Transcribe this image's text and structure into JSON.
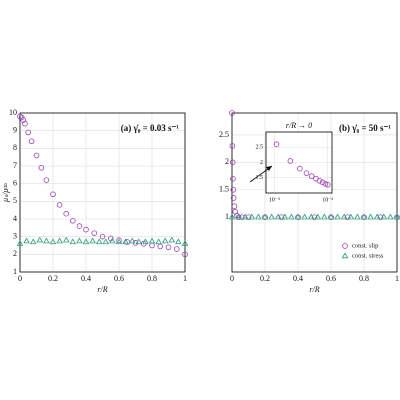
{
  "chart_data": [
    {
      "type": "scatter",
      "annotation": "(a) γ̇₀ = 0.03 s⁻¹",
      "x_label": "r/R",
      "y_label": "μₛ/μ∞",
      "xlim": [
        0,
        1
      ],
      "ylim": [
        1,
        10
      ],
      "xticks": [
        0,
        0.2,
        0.4,
        0.6,
        0.8,
        1
      ],
      "yticks": [
        1,
        2,
        3,
        4,
        5,
        6,
        7,
        8,
        9,
        10
      ],
      "grid": true,
      "series": [
        {
          "name": "const. slip",
          "color": "#9b3fb5",
          "marker": "circle",
          "x": [
            0,
            0.01,
            0.02,
            0.03,
            0.05,
            0.07,
            0.1,
            0.13,
            0.16,
            0.2,
            0.24,
            0.28,
            0.32,
            0.36,
            0.4,
            0.45,
            0.5,
            0.55,
            0.6,
            0.65,
            0.7,
            0.75,
            0.8,
            0.85,
            0.9,
            0.95,
            1
          ],
          "values": [
            9.8,
            9.75,
            9.6,
            9.4,
            8.9,
            8.4,
            7.6,
            6.9,
            6.2,
            5.4,
            4.8,
            4.3,
            3.9,
            3.6,
            3.4,
            3.2,
            3.0,
            2.9,
            2.8,
            2.7,
            2.65,
            2.6,
            2.5,
            2.45,
            2.4,
            2.3,
            2.0
          ]
        },
        {
          "name": "const. stress",
          "color": "#2a9d7a",
          "marker": "triangle",
          "x": [
            0,
            0.04,
            0.08,
            0.12,
            0.16,
            0.2,
            0.24,
            0.28,
            0.32,
            0.36,
            0.4,
            0.44,
            0.48,
            0.52,
            0.56,
            0.6,
            0.64,
            0.68,
            0.72,
            0.76,
            0.8,
            0.84,
            0.88,
            0.92,
            0.96,
            1
          ],
          "values": [
            2.6,
            2.75,
            2.7,
            2.8,
            2.75,
            2.7,
            2.75,
            2.8,
            2.7,
            2.75,
            2.7,
            2.75,
            2.7,
            2.7,
            2.75,
            2.7,
            2.7,
            2.75,
            2.7,
            2.7,
            2.75,
            2.7,
            2.75,
            2.8,
            2.7,
            2.6
          ]
        }
      ]
    },
    {
      "type": "scatter",
      "annotation": "(b) γ̇₀ = 50 s⁻¹",
      "x_label": "r/R",
      "xlim": [
        0,
        1
      ],
      "ylim": [
        0,
        2.9
      ],
      "xticks": [
        0,
        0.2,
        0.4,
        0.6,
        0.8,
        1
      ],
      "yticks": [
        1,
        1.5,
        2,
        2.5
      ],
      "grid": true,
      "legend": "lower right",
      "series": [
        {
          "name": "const. slip",
          "color": "#9b3fb5",
          "marker": "circle",
          "x": [
            0,
            0.002,
            0.004,
            0.006,
            0.008,
            0.01,
            0.015,
            0.02,
            0.03,
            0.04,
            0.06,
            0.1,
            0.2,
            0.3,
            0.4,
            0.5,
            0.6,
            0.7,
            0.8,
            0.9,
            1
          ],
          "values": [
            2.9,
            2.3,
            2.0,
            1.7,
            1.5,
            1.35,
            1.2,
            1.1,
            1.03,
            1.0,
            1.0,
            1.0,
            1.0,
            1.0,
            1.0,
            1.0,
            1.0,
            1.0,
            1.0,
            1.0,
            1.0
          ]
        },
        {
          "name": "const. stress",
          "color": "#2a9d7a",
          "marker": "triangle",
          "x": [
            0,
            0.04,
            0.08,
            0.12,
            0.16,
            0.2,
            0.24,
            0.28,
            0.32,
            0.36,
            0.4,
            0.44,
            0.48,
            0.52,
            0.56,
            0.6,
            0.64,
            0.68,
            0.72,
            0.76,
            0.8,
            0.84,
            0.88,
            0.92,
            0.96,
            1
          ],
          "values": [
            1,
            1,
            1,
            1,
            1,
            1,
            1,
            1,
            1,
            1,
            1,
            1,
            1,
            1,
            1,
            1,
            1,
            1,
            1,
            1,
            1,
            1,
            1,
            1,
            1,
            1
          ]
        }
      ]
    },
    {
      "type": "scatter",
      "title": "r/R → 0",
      "log_x": true,
      "xlim": [
        0.0007,
        0.012
      ],
      "ylim": [
        1,
        3
      ],
      "xticks": [
        {
          "value": 0.001,
          "label": "10⁻³"
        },
        {
          "value": 0.01,
          "label": "10⁻²"
        }
      ],
      "yticks": [
        1.5,
        2,
        2.5
      ],
      "grid": true,
      "series": [
        {
          "name": "const. slip",
          "color": "#9b3fb5",
          "marker": "circle",
          "x": [
            0.0011,
            0.002,
            0.003,
            0.004,
            0.005,
            0.006,
            0.007,
            0.008,
            0.009,
            0.01
          ],
          "values": [
            2.6,
            2.05,
            1.8,
            1.65,
            1.55,
            1.47,
            1.4,
            1.35,
            1.3,
            1.27
          ]
        }
      ]
    }
  ]
}
